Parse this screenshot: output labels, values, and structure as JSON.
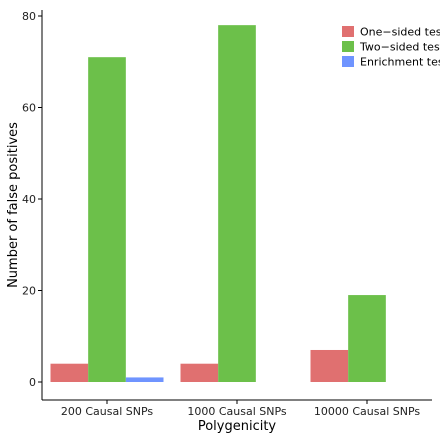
{
  "chart_data": {
    "type": "bar",
    "title": "",
    "xlabel": "Polygenicity",
    "ylabel": "Number of false positives",
    "categories": [
      "200 Causal SNPs",
      "1000 Causal SNPs",
      "10000 Causal SNPs"
    ],
    "series": [
      {
        "name": "One−sided test",
        "values": [
          4,
          4,
          7
        ],
        "color": "#e07070"
      },
      {
        "name": "Two−sided test",
        "values": [
          71,
          78,
          19
        ],
        "color": "#6cc04a"
      },
      {
        "name": "Enrichment test",
        "values": [
          1,
          0,
          0
        ],
        "color": "#6f94ff"
      }
    ],
    "ylim": [
      0,
      80
    ],
    "yticks": [
      0,
      20,
      40,
      60,
      80
    ],
    "grid": false,
    "legend_position": "top-right"
  }
}
